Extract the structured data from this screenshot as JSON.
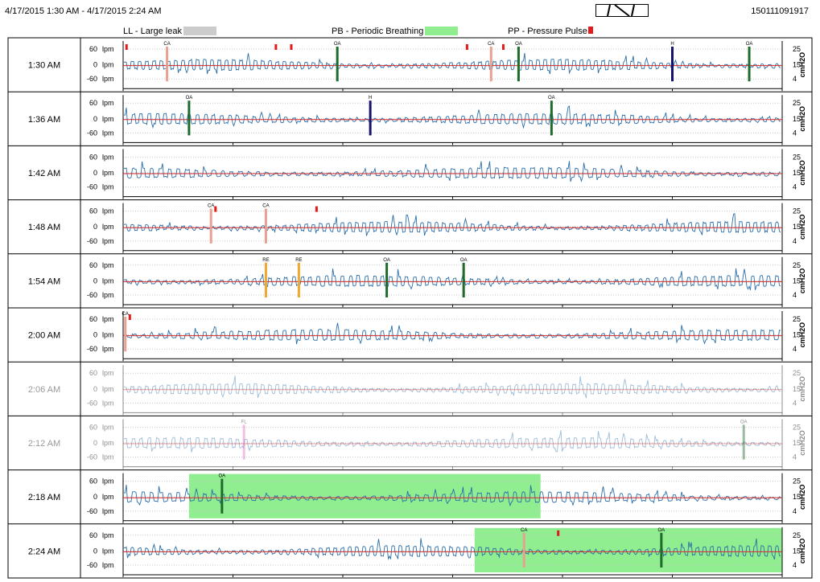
{
  "header": {
    "range": "4/17/2015  1:30 AM - 4/17/2015  2:24 AM",
    "serial": "150111091917"
  },
  "legend": [
    {
      "label": "LL - Large leak",
      "color": "#cccccc"
    },
    {
      "label": "PB - Periodic Breathing",
      "color": "#90ee90"
    },
    {
      "label": "PP - Pressure Pulse",
      "color": "#e31a1c"
    }
  ],
  "axis": {
    "flow_ticks": [
      "60",
      "0",
      "-60"
    ],
    "flow_unit": "lpm",
    "pressure_ticks": [
      "25",
      "15",
      "4"
    ],
    "pressure_unit": "cmH2O"
  },
  "colors": {
    "flow": "#2b6fa8",
    "pressure": "#d62728",
    "OA": "#1e6b2a",
    "CA": "#e8a090",
    "H": "#14146e",
    "RE": "#f0a830",
    "FL": "#e070c0",
    "PB": "#90ee90",
    "PP": "#e31a1c"
  },
  "chart_data": {
    "type": "line",
    "x_unit": "minutes within row (0-6)",
    "flow_ylim": [
      -60,
      60
    ],
    "pressure_ylim": [
      4,
      25
    ],
    "rows": [
      {
        "time": "1:30 AM",
        "faded": false,
        "events": [
          {
            "type": "CA",
            "x": 0.4
          },
          {
            "type": "OA",
            "x": 1.95
          },
          {
            "type": "CA",
            "x": 3.35
          },
          {
            "type": "OA",
            "x": 3.6
          },
          {
            "type": "H",
            "x": 5.0
          },
          {
            "type": "OA",
            "x": 5.7
          }
        ],
        "pp": [
          0.02,
          1.38,
          1.52,
          3.12,
          3.45
        ],
        "pb": []
      },
      {
        "time": "1:36 AM",
        "faded": false,
        "events": [
          {
            "type": "OA",
            "x": 0.6
          },
          {
            "type": "H",
            "x": 2.25
          },
          {
            "type": "OA",
            "x": 3.9
          }
        ],
        "pp": [],
        "pb": []
      },
      {
        "time": "1:42 AM",
        "faded": false,
        "events": [],
        "pp": [],
        "pb": []
      },
      {
        "time": "1:48 AM",
        "faded": false,
        "events": [
          {
            "type": "CA",
            "x": 0.8
          },
          {
            "type": "CA",
            "x": 1.3
          }
        ],
        "pp": [
          0.83,
          1.75
        ],
        "pb": []
      },
      {
        "time": "1:54 AM",
        "faded": false,
        "events": [
          {
            "type": "RE",
            "x": 1.3
          },
          {
            "type": "RE",
            "x": 1.6
          },
          {
            "type": "OA",
            "x": 2.4
          },
          {
            "type": "OA",
            "x": 3.1
          }
        ],
        "pp": [],
        "pb": []
      },
      {
        "time": "2:00 AM",
        "faded": false,
        "events": [
          {
            "type": "CA",
            "x": 0.02
          }
        ],
        "pp": [
          0.05
        ],
        "pb": []
      },
      {
        "time": "2:06 AM",
        "faded": true,
        "events": [],
        "pp": [],
        "pb": []
      },
      {
        "time": "2:12 AM",
        "faded": true,
        "events": [
          {
            "type": "FL",
            "x": 1.1
          },
          {
            "type": "OA",
            "x": 5.65
          }
        ],
        "pp": [],
        "pb": []
      },
      {
        "time": "2:18 AM",
        "faded": false,
        "events": [
          {
            "type": "OA",
            "x": 0.9
          }
        ],
        "pp": [],
        "pb": [
          [
            0.6,
            3.8
          ]
        ]
      },
      {
        "time": "2:24 AM",
        "faded": false,
        "events": [
          {
            "type": "CA",
            "x": 3.65
          },
          {
            "type": "OA",
            "x": 4.9
          }
        ],
        "pp": [
          3.95
        ],
        "pb": [
          [
            3.2,
            6.0
          ]
        ]
      }
    ]
  }
}
